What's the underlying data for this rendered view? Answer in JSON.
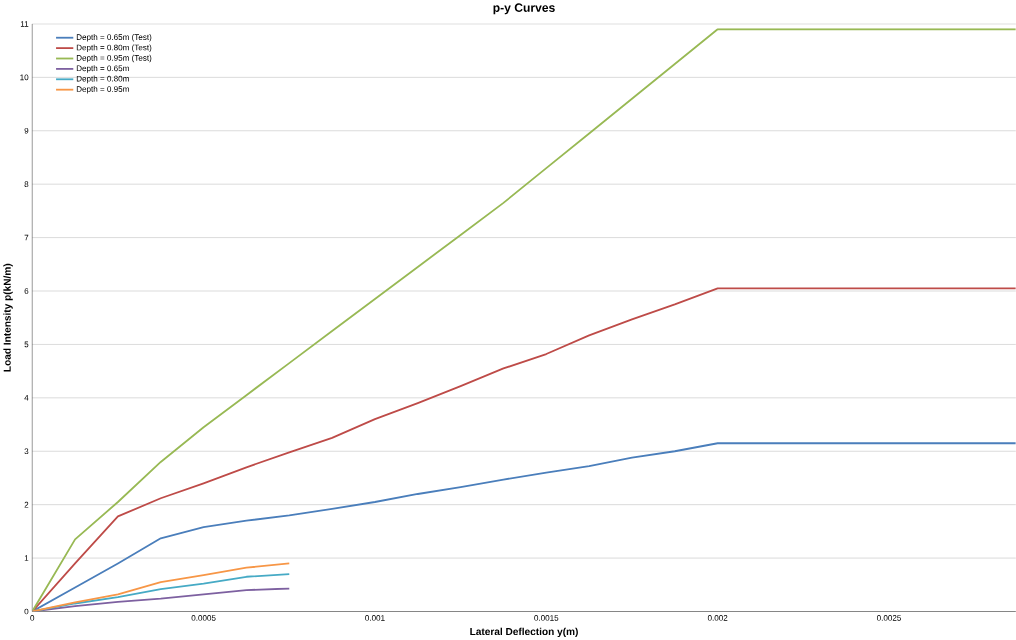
{
  "chart_data": {
    "type": "line",
    "title": "p-y Curves",
    "xlabel": "Lateral Deflection y(m)",
    "ylabel": "Load Intensity p(kN/m)",
    "xlim": [
      0,
      0.00287
    ],
    "ylim": [
      0,
      11
    ],
    "xticks": [
      0,
      0.0005,
      0.001,
      0.0015,
      0.002,
      0.0025
    ],
    "yticks": [
      0,
      1,
      2,
      3,
      4,
      5,
      6,
      7,
      8,
      9,
      10,
      11
    ],
    "grid": "y",
    "legend": "top left",
    "marker": "none",
    "line_style": "solid",
    "x": [
      0,
      0.000125,
      0.00025,
      0.000375,
      0.0005,
      0.000625,
      0.00075,
      0.000875,
      0.001,
      0.001125,
      0.00125,
      0.001375,
      0.0015,
      0.001625,
      0.00175,
      0.001875,
      0.002,
      0.00287
    ],
    "series": [
      {
        "name": "Depth = 0.65m (Test)",
        "color": "#4a7ebb",
        "values": [
          0,
          0.45,
          0.9,
          1.37,
          1.58,
          1.7,
          1.8,
          1.92,
          2.05,
          2.2,
          2.33,
          2.47,
          2.6,
          2.72,
          2.88,
          3.0,
          3.15,
          3.15
        ]
      },
      {
        "name": "Depth = 0.80m (Test)",
        "color": "#be4b48",
        "values": [
          0,
          0.9,
          1.78,
          2.12,
          2.4,
          2.7,
          2.98,
          3.25,
          3.6,
          3.9,
          4.22,
          4.55,
          4.82,
          5.17,
          5.47,
          5.75,
          6.05,
          6.05
        ]
      },
      {
        "name": "Depth = 0.95m (Test)",
        "color": "#98b954",
        "values": [
          0,
          1.35,
          2.05,
          2.8,
          3.45,
          4.05,
          4.65,
          5.25,
          5.85,
          6.45,
          7.05,
          7.65,
          8.3,
          8.95,
          9.6,
          10.25,
          10.9,
          10.9
        ]
      },
      {
        "name": "Depth = 0.65m",
        "color": "#7d60a0",
        "x": [
          0,
          0.000125,
          0.00025,
          0.000375,
          0.0005,
          0.000625,
          0.00075
        ],
        "values": [
          0,
          0.1,
          0.18,
          0.24,
          0.32,
          0.4,
          0.43
        ]
      },
      {
        "name": "Depth = 0.80m",
        "color": "#46aac5",
        "x": [
          0,
          0.000125,
          0.00025,
          0.000375,
          0.0005,
          0.000625,
          0.00075
        ],
        "values": [
          0,
          0.15,
          0.27,
          0.42,
          0.52,
          0.65,
          0.7
        ]
      },
      {
        "name": "Depth = 0.95m",
        "color": "#f79646",
        "x": [
          0,
          0.000125,
          0.00025,
          0.000375,
          0.0005,
          0.000625,
          0.00075
        ],
        "values": [
          0,
          0.17,
          0.32,
          0.55,
          0.68,
          0.82,
          0.9
        ]
      }
    ]
  }
}
